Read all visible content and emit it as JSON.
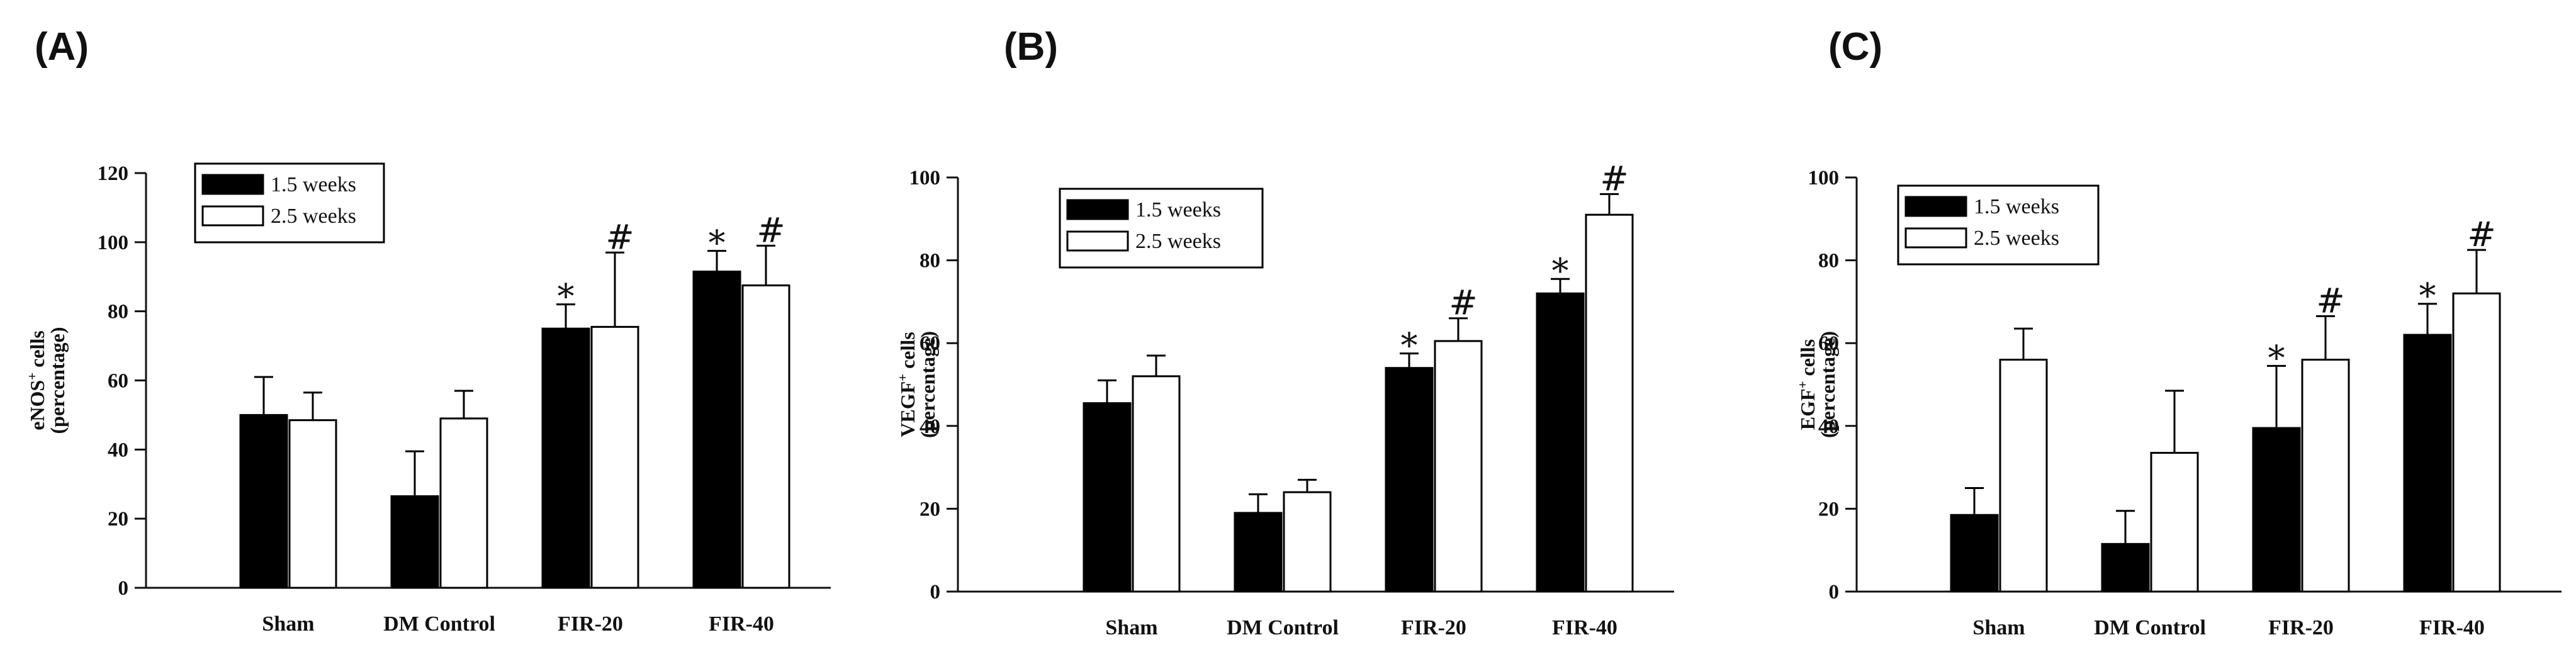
{
  "chart_data": [
    {
      "type": "bar",
      "panel": "(A)",
      "ylabel_line1_main": "eNOS",
      "ylabel_line1_sup": "+",
      "ylabel_line1_tail": " cells",
      "ylabel_line2": "(percentage)",
      "ylim": [
        0,
        120
      ],
      "yticks": [
        0,
        20,
        40,
        60,
        80,
        100,
        120
      ],
      "categories": [
        "Sham",
        "DM Control",
        "FIR-20",
        "FIR-40"
      ],
      "series": [
        {
          "name": "1.5 weeks",
          "fill": "#000000",
          "values": [
            50,
            26.5,
            75,
            91.5
          ],
          "errors": [
            11,
            13,
            7,
            6
          ],
          "markers": [
            "",
            "",
            "*",
            "*"
          ]
        },
        {
          "name": "2.5 weeks",
          "fill": "#ffffff",
          "values": [
            48.5,
            49,
            75.5,
            87.5
          ],
          "errors": [
            8,
            8,
            21.5,
            11.5
          ],
          "markers": [
            "",
            "",
            "#",
            "#"
          ]
        }
      ],
      "legend": {
        "position": "top-left",
        "entries": [
          "1.5 weeks",
          "2.5 weeks"
        ]
      }
    },
    {
      "type": "bar",
      "panel": "(B)",
      "ylabel_line1_main": "VEGF",
      "ylabel_line1_sup": "+",
      "ylabel_line1_tail": " cells",
      "ylabel_line2": "(percentage)",
      "ylim": [
        0,
        100
      ],
      "yticks": [
        0,
        20,
        40,
        60,
        80,
        100
      ],
      "categories": [
        "Sham",
        "DM Control",
        "FIR-20",
        "FIR-40"
      ],
      "series": [
        {
          "name": "1.5 weeks",
          "fill": "#000000",
          "values": [
            45.5,
            19,
            54,
            72
          ],
          "errors": [
            5.5,
            4.5,
            3.5,
            3.5
          ],
          "markers": [
            "",
            "",
            "*",
            "*"
          ]
        },
        {
          "name": "2.5 weeks",
          "fill": "#ffffff",
          "values": [
            52,
            24,
            60.5,
            91
          ],
          "errors": [
            5,
            3,
            5.5,
            5
          ],
          "markers": [
            "",
            "",
            "#",
            "#"
          ]
        }
      ],
      "legend": {
        "position": "top-left",
        "entries": [
          "1.5 weeks",
          "2.5 weeks"
        ]
      }
    },
    {
      "type": "bar",
      "panel": "(C)",
      "ylabel_line1_main": "EGF",
      "ylabel_line1_sup": "+",
      "ylabel_line1_tail": " cells",
      "ylabel_line2": "(percentage)",
      "ylim": [
        0,
        100
      ],
      "yticks": [
        0,
        20,
        40,
        60,
        80,
        100
      ],
      "categories": [
        "Sham",
        "DM Control",
        "FIR-20",
        "FIR-40"
      ],
      "series": [
        {
          "name": "1.5 weeks",
          "fill": "#000000",
          "values": [
            18.5,
            11.5,
            39.5,
            62
          ],
          "errors": [
            6.5,
            8,
            15,
            7.5
          ],
          "markers": [
            "",
            "",
            "*",
            "*"
          ]
        },
        {
          "name": "2.5 weeks",
          "fill": "#ffffff",
          "values": [
            56,
            33.5,
            56,
            72
          ],
          "errors": [
            7.5,
            15,
            10.5,
            10.5
          ],
          "markers": [
            "",
            "",
            "#",
            "#"
          ]
        }
      ],
      "legend": {
        "position": "top-left",
        "entries": [
          "1.5 weeks",
          "2.5 weeks"
        ]
      }
    }
  ]
}
